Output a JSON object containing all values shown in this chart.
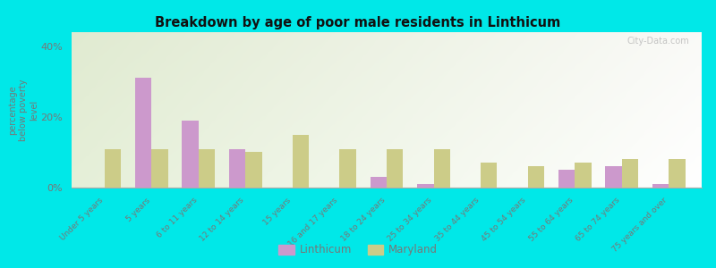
{
  "title": "Breakdown by age of poor male residents in Linthicum",
  "ylabel": "percentage\nbelow poverty\nlevel",
  "categories": [
    "Under 5 years",
    "5 years",
    "6 to 11 years",
    "12 to 14 years",
    "15 years",
    "16 and 17 years",
    "18 to 24 years",
    "25 to 34 years",
    "35 to 44 years",
    "45 to 54 years",
    "55 to 64 years",
    "65 to 74 years",
    "75 years and over"
  ],
  "linthicum": [
    0,
    31,
    19,
    11,
    0,
    0,
    3,
    1,
    0,
    0,
    5,
    6,
    1
  ],
  "maryland": [
    11,
    11,
    11,
    10,
    15,
    11,
    11,
    11,
    7,
    6,
    7,
    8,
    8
  ],
  "linthicum_color": "#cc99cc",
  "maryland_color": "#cccc88",
  "outer_bg": "#00e8e8",
  "title_color": "#111111",
  "axis_label_color": "#777777",
  "tick_label_color": "#777777",
  "ylim": [
    0,
    44
  ],
  "yticks": [
    0,
    20,
    40
  ],
  "ytick_labels": [
    "0%",
    "20%",
    "40%"
  ],
  "bar_width": 0.35,
  "legend_linthicum": "Linthicum",
  "legend_maryland": "Maryland",
  "watermark": "City-Data.com"
}
